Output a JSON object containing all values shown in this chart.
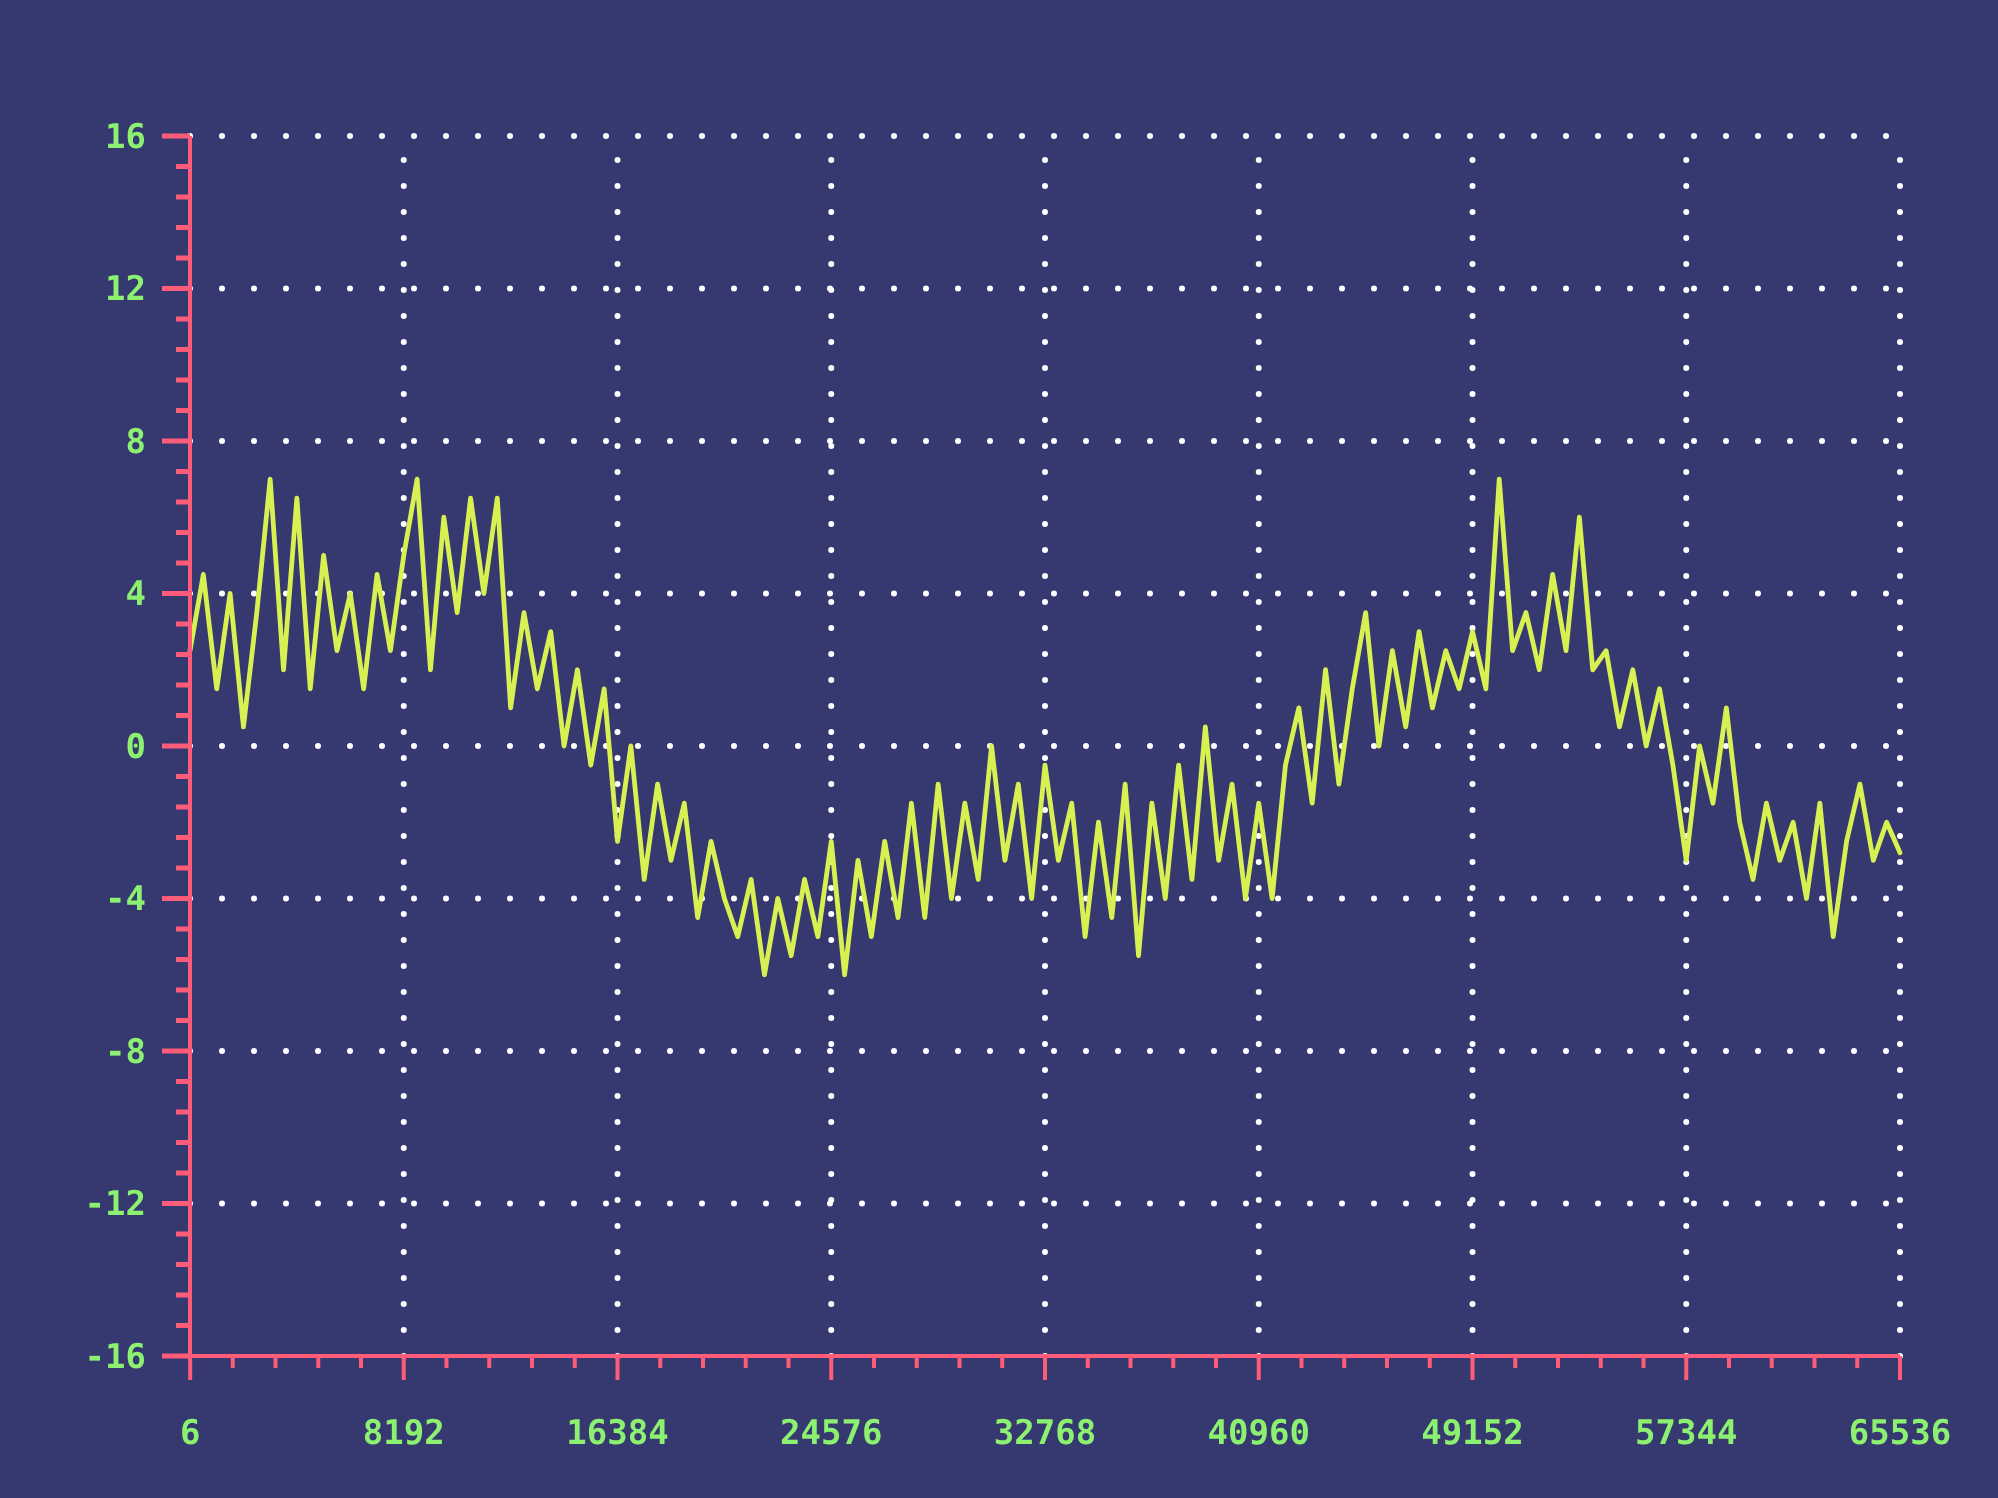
{
  "chart_data": {
    "type": "line",
    "x": [
      0,
      512,
      1024,
      1536,
      2048,
      2560,
      3072,
      3584,
      4096,
      4608,
      5120,
      5632,
      6144,
      6656,
      7168,
      7680,
      8192,
      8704,
      9216,
      9728,
      10240,
      10752,
      11264,
      11776,
      12288,
      12800,
      13312,
      13824,
      14336,
      14848,
      15360,
      15872,
      16384,
      16896,
      17408,
      17920,
      18432,
      18944,
      19456,
      19968,
      20480,
      20992,
      21504,
      22016,
      22528,
      23040,
      23552,
      24064,
      24576,
      25088,
      25600,
      26112,
      26624,
      27136,
      27648,
      28160,
      28672,
      29184,
      29696,
      30208,
      30720,
      31232,
      31744,
      32256,
      32768,
      33280,
      33792,
      34304,
      34816,
      35328,
      35840,
      36352,
      36864,
      37376,
      37888,
      38400,
      38912,
      39424,
      39936,
      40448,
      40960,
      41472,
      41984,
      42496,
      43008,
      43520,
      44032,
      44544,
      45056,
      45568,
      46080,
      46592,
      47104,
      47616,
      48128,
      48640,
      49152,
      49664,
      50176,
      50688,
      51200,
      51712,
      52224,
      52736,
      53248,
      53760,
      54272,
      54784,
      55296,
      55808,
      56320,
      56832,
      57344,
      57856,
      58368,
      58880,
      59392,
      59904,
      60416,
      60928,
      61440,
      61952,
      62464,
      62976,
      63488,
      64000,
      64512,
      65024,
      65536
    ],
    "series": [
      {
        "color": "#d8f052",
        "values": [
          2.5,
          4.5,
          1.5,
          4,
          0.5,
          3.5,
          7,
          2,
          6.5,
          1.5,
          5,
          2.5,
          4,
          1.5,
          4.5,
          2.5,
          5,
          7,
          2,
          6,
          3.5,
          6.5,
          4,
          6.5,
          1,
          3.5,
          1.5,
          3,
          0,
          2,
          -0.5,
          1.5,
          -2.5,
          0,
          -3.5,
          -1,
          -3,
          -1.5,
          -4.5,
          -2.5,
          -4,
          -5,
          -3.5,
          -6,
          -4,
          -5.5,
          -3.5,
          -5,
          -2.5,
          -6,
          -3,
          -5,
          -2.5,
          -4.5,
          -1.5,
          -4.5,
          -1,
          -4,
          -1.5,
          -3.5,
          0,
          -3,
          -1,
          -4,
          -0.5,
          -3,
          -1.5,
          -5,
          -2,
          -4.5,
          -1,
          -5.5,
          -1.5,
          -4,
          -0.5,
          -3.5,
          0.5,
          -3,
          -1,
          -4,
          -1.5,
          -4,
          -0.5,
          1,
          -1.5,
          2,
          -1,
          1.5,
          3.5,
          0,
          2.5,
          0.5,
          3,
          1,
          2.5,
          1.5,
          3,
          1.5,
          7,
          2.5,
          3.5,
          2,
          4.5,
          2.5,
          6,
          2,
          2.5,
          0.5,
          2,
          0,
          1.5,
          -0.5,
          -3,
          0,
          -1.5,
          1,
          -2,
          -3.5,
          -1.5,
          -3,
          -2,
          -4,
          -1.5,
          -5,
          -2.5,
          -1,
          -3,
          -2,
          -2.8
        ]
      }
    ],
    "xlim": [
      0,
      65536
    ],
    "ylim": [
      -16,
      16
    ],
    "xticks": [
      6,
      {
        "value": 1638.4,
        "label": null
      },
      {
        "value": 3276.8,
        "label": null
      },
      {
        "value": 4915.2,
        "label": null
      },
      {
        "value": 6553.6,
        "label": null
      },
      8192,
      {
        "value": 9830.4,
        "label": null
      },
      {
        "value": 11468.8,
        "label": null
      },
      {
        "value": 13107.2,
        "label": null
      },
      {
        "value": 14745.6,
        "label": null
      },
      16384,
      {
        "value": 18022.4,
        "label": null
      },
      {
        "value": 19660.8,
        "label": null
      },
      {
        "value": 21299.2,
        "label": null
      },
      {
        "value": 22937.6,
        "label": null
      },
      24576,
      {
        "value": 26214.4,
        "label": null
      },
      {
        "value": 27852.8,
        "label": null
      },
      {
        "value": 29491.2,
        "label": null
      },
      {
        "value": 31129.6,
        "label": null
      },
      32768,
      {
        "value": 34406.4,
        "label": null
      },
      {
        "value": 36044.8,
        "label": null
      },
      {
        "value": 37683.2,
        "label": null
      },
      {
        "value": 39321.6,
        "label": null
      },
      40960,
      {
        "value": 42598.4,
        "label": null
      },
      {
        "value": 44236.8,
        "label": null
      },
      {
        "value": 45875.2,
        "label": null
      },
      {
        "value": 47513.6,
        "label": null
      },
      49152,
      {
        "value": 50790.4,
        "label": null
      },
      {
        "value": 52428.8,
        "label": null
      },
      {
        "value": 54067.2,
        "label": null
      },
      {
        "value": 55705.6,
        "label": null
      },
      57344,
      {
        "value": 58982.4,
        "label": null
      },
      {
        "value": 60620.8,
        "label": null
      },
      {
        "value": 62259.2,
        "label": null
      },
      {
        "value": 63897.6,
        "label": null
      },
      65536
    ],
    "yticks": [
      -16,
      {
        "value": -15.2,
        "label": null
      },
      {
        "value": -14.4,
        "label": null
      },
      {
        "value": -13.6,
        "label": null
      },
      {
        "value": -12.8,
        "label": null
      },
      -12,
      {
        "value": -11.2,
        "label": null
      },
      {
        "value": -10.4,
        "label": null
      },
      {
        "value": -9.6,
        "label": null
      },
      {
        "value": -8.8,
        "label": null
      },
      -8,
      {
        "value": -7.2,
        "label": null
      },
      {
        "value": -6.4,
        "label": null
      },
      {
        "value": -5.6,
        "label": null
      },
      {
        "value": -4.8,
        "label": null
      },
      -4,
      {
        "value": -3.2,
        "label": null
      },
      {
        "value": -2.4,
        "label": null
      },
      {
        "value": -1.6,
        "label": null
      },
      {
        "value": -0.8,
        "label": null
      },
      0,
      {
        "value": 0.8,
        "label": null
      },
      {
        "value": 1.6,
        "label": null
      },
      {
        "value": 2.4,
        "label": null
      },
      {
        "value": 3.2,
        "label": null
      },
      4,
      {
        "value": 4.8,
        "label": null
      },
      {
        "value": 5.6,
        "label": null
      },
      {
        "value": 6.4,
        "label": null
      },
      {
        "value": 7.2,
        "label": null
      },
      8,
      {
        "value": 8.8,
        "label": null
      },
      {
        "value": 9.6,
        "label": null
      },
      {
        "value": 10.4,
        "label": null
      },
      {
        "value": 11.2,
        "label": null
      },
      12,
      {
        "value": 12.8,
        "label": null
      },
      {
        "value": 13.6,
        "label": null
      },
      {
        "value": 14.4,
        "label": null
      },
      {
        "value": 15.2,
        "label": null
      },
      16
    ],
    "grid": true,
    "line_style": "solid"
  }
}
